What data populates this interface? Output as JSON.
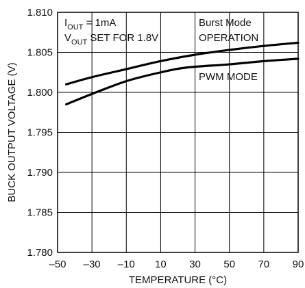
{
  "chart_data": {
    "type": "line",
    "title": "",
    "xlabel": "TEMPERATURE (°C)",
    "ylabel": "BUCK OUTPUT VOLTAGE (V)",
    "xlim": [
      -50,
      90
    ],
    "ylim": [
      1.78,
      1.81
    ],
    "x_ticks": [
      -50,
      -30,
      -10,
      10,
      30,
      50,
      70,
      90
    ],
    "x_tick_labels": [
      "–50",
      "–30",
      "–10",
      "10",
      "30",
      "50",
      "70",
      "90"
    ],
    "y_ticks": [
      1.78,
      1.785,
      1.79,
      1.795,
      1.8,
      1.805,
      1.81
    ],
    "y_tick_labels": [
      "1.780",
      "1.785",
      "1.790",
      "1.795",
      "1.800",
      "1.805",
      "1.810"
    ],
    "grid": true,
    "line_color": "#000000",
    "series": [
      {
        "name": "Burst Mode OPERATION",
        "name_lines": [
          "Burst Mode",
          "OPERATION"
        ],
        "x": [
          -45,
          -30,
          -10,
          10,
          30,
          50,
          70,
          90
        ],
        "y": [
          1.801,
          1.8019,
          1.8029,
          1.8039,
          1.8047,
          1.8053,
          1.8058,
          1.8062
        ]
      },
      {
        "name": "PWM MODE",
        "name_lines": [
          "PWM MODE"
        ],
        "x": [
          -45,
          -30,
          -10,
          10,
          25,
          50,
          70,
          90
        ],
        "y": [
          1.7985,
          1.7998,
          1.8014,
          1.8025,
          1.8031,
          1.8035,
          1.8039,
          1.8042
        ]
      }
    ],
    "annotations": {
      "conditions": [
        {
          "main": "I",
          "sub": "OUT",
          "rest": " = 1mA"
        },
        {
          "main": "V",
          "sub": "OUT",
          "rest": " SET FOR 1.8V"
        }
      ]
    }
  }
}
